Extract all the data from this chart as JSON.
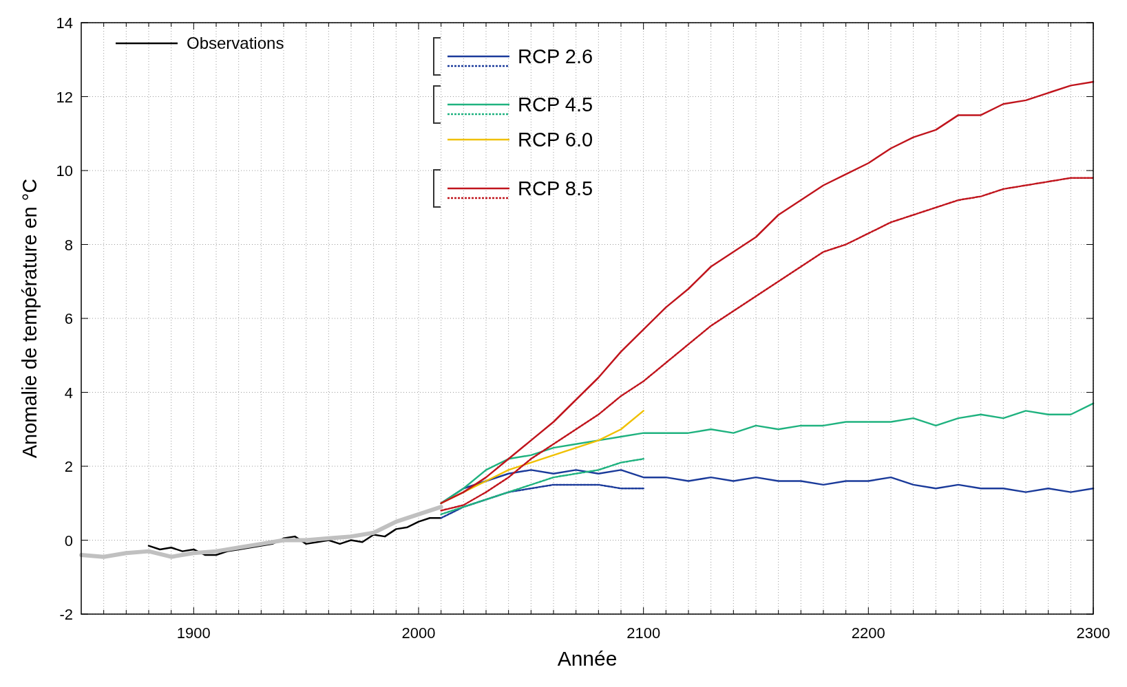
{
  "chart_data": {
    "type": "line",
    "xlabel": "Année",
    "ylabel": "Anomalie de température en °C",
    "xlim": [
      1850,
      2300
    ],
    "ylim": [
      -2,
      14
    ],
    "yticks": [
      -2,
      0,
      2,
      4,
      6,
      8,
      10,
      12,
      14
    ],
    "xticks": [
      {
        "value": 1860,
        "label": null
      },
      {
        "value": 1870,
        "label": null
      },
      {
        "value": 1880,
        "label": null
      },
      {
        "value": 1890,
        "label": null
      },
      1900,
      {
        "value": 1910,
        "label": null
      },
      {
        "value": 1920,
        "label": null
      },
      {
        "value": 1930,
        "label": null
      },
      {
        "value": 1940,
        "label": null
      },
      {
        "value": 1950,
        "label": null
      },
      {
        "value": 1960,
        "label": null
      },
      {
        "value": 1970,
        "label": null
      },
      {
        "value": 1980,
        "label": null
      },
      {
        "value": 1990,
        "label": null
      },
      2000,
      {
        "value": 2010,
        "label": null
      },
      {
        "value": 2020,
        "label": null
      },
      {
        "value": 2030,
        "label": null
      },
      {
        "value": 2040,
        "label": null
      },
      {
        "value": 2050,
        "label": null
      },
      {
        "value": 2060,
        "label": null
      },
      {
        "value": 2070,
        "label": null
      },
      {
        "value": 2080,
        "label": null
      },
      {
        "value": 2090,
        "label": null
      },
      2100,
      {
        "value": 2110,
        "label": null
      },
      {
        "value": 2120,
        "label": null
      },
      {
        "value": 2130,
        "label": null
      },
      {
        "value": 2140,
        "label": null
      },
      {
        "value": 2150,
        "label": null
      },
      {
        "value": 2160,
        "label": null
      },
      {
        "value": 2170,
        "label": null
      },
      {
        "value": 2180,
        "label": null
      },
      {
        "value": 2190,
        "label": null
      },
      2200,
      {
        "value": 2210,
        "label": null
      },
      {
        "value": 2220,
        "label": null
      },
      {
        "value": 2230,
        "label": null
      },
      {
        "value": 2240,
        "label": null
      },
      {
        "value": 2250,
        "label": null
      },
      {
        "value": 2260,
        "label": null
      },
      {
        "value": 2270,
        "label": null
      },
      {
        "value": 2280,
        "label": null
      },
      {
        "value": 2290,
        "label": null
      },
      2300
    ],
    "grid": true,
    "legend": "top left",
    "marker": "none",
    "series": [
      {
        "name": "Observations",
        "color": "#000000",
        "line_style": "solid",
        "x": [
          1880,
          1885,
          1890,
          1895,
          1900,
          1905,
          1910,
          1915,
          1920,
          1925,
          1930,
          1935,
          1940,
          1945,
          1950,
          1955,
          1960,
          1965,
          1970,
          1975,
          1980,
          1985,
          1990,
          1995,
          2000,
          2005,
          2010
        ],
        "values": [
          -0.15,
          -0.25,
          -0.2,
          -0.3,
          -0.25,
          -0.4,
          -0.4,
          -0.3,
          -0.25,
          -0.2,
          -0.15,
          -0.1,
          0.05,
          0.1,
          -0.1,
          -0.05,
          0,
          -0.1,
          0,
          -0.05,
          0.15,
          0.1,
          0.3,
          0.35,
          0.5,
          0.6,
          0.6
        ]
      },
      {
        "color": "#c0c0c0",
        "line_style": "solid",
        "x": [
          1850,
          1860,
          1870,
          1880,
          1890,
          1900,
          1910,
          1920,
          1930,
          1940,
          1950,
          1960,
          1970,
          1980,
          1990,
          2000,
          2010
        ],
        "values": [
          -0.4,
          -0.45,
          -0.35,
          -0.3,
          -0.45,
          -0.35,
          -0.3,
          -0.2,
          -0.1,
          0,
          0,
          0.05,
          0.1,
          0.2,
          0.5,
          0.7,
          0.9
        ]
      },
      {
        "name": "RCP 2.6",
        "color": "#1a3a9a",
        "line_style": "solid",
        "x": [
          2010,
          2020,
          2030,
          2040,
          2050,
          2060,
          2070,
          2080,
          2090,
          2100,
          2110,
          2120,
          2130,
          2140,
          2150,
          2160,
          2170,
          2180,
          2190,
          2200,
          2210,
          2220,
          2230,
          2240,
          2250,
          2260,
          2270,
          2280,
          2290,
          2300
        ],
        "values": [
          1,
          1.4,
          1.6,
          1.8,
          1.9,
          1.8,
          1.9,
          1.8,
          1.9,
          1.7,
          1.7,
          1.6,
          1.7,
          1.6,
          1.7,
          1.6,
          1.6,
          1.5,
          1.6,
          1.6,
          1.7,
          1.5,
          1.4,
          1.5,
          1.4,
          1.4,
          1.3,
          1.4,
          1.3,
          1.4
        ]
      },
      {
        "color": "#1a3a9a",
        "line_style": "dotted",
        "x": [
          2010,
          2020,
          2030,
          2040,
          2050,
          2060,
          2070,
          2080,
          2090,
          2100
        ],
        "values": [
          0.6,
          0.9,
          1.1,
          1.3,
          1.4,
          1.5,
          1.5,
          1.5,
          1.4,
          1.4
        ]
      },
      {
        "name": "RCP 4.5",
        "color": "#1fb27f",
        "line_style": "solid",
        "x": [
          2010,
          2020,
          2030,
          2040,
          2050,
          2060,
          2070,
          2080,
          2090,
          2100,
          2110,
          2120,
          2130,
          2140,
          2150,
          2160,
          2170,
          2180,
          2190,
          2200,
          2210,
          2220,
          2230,
          2240,
          2250,
          2260,
          2270,
          2280,
          2290,
          2300
        ],
        "values": [
          1,
          1.4,
          1.9,
          2.2,
          2.3,
          2.5,
          2.6,
          2.7,
          2.8,
          2.9,
          2.9,
          2.9,
          3,
          2.9,
          3.1,
          3,
          3.1,
          3.1,
          3.2,
          3.2,
          3.2,
          3.3,
          3.1,
          3.3,
          3.4,
          3.3,
          3.5,
          3.4,
          3.4,
          3.7
        ]
      },
      {
        "color": "#1fb27f",
        "line_style": "dotted",
        "x": [
          2010,
          2020,
          2030,
          2040,
          2050,
          2060,
          2070,
          2080,
          2090,
          2100
        ],
        "values": [
          0.7,
          0.9,
          1.1,
          1.3,
          1.5,
          1.7,
          1.8,
          1.9,
          2.1,
          2.2
        ]
      },
      {
        "name": "RCP 6.0",
        "color": "#f0c000",
        "line_style": "solid",
        "x": [
          2010,
          2020,
          2030,
          2040,
          2050,
          2060,
          2070,
          2080,
          2090,
          2100
        ],
        "values": [
          1,
          1.3,
          1.6,
          1.9,
          2.1,
          2.3,
          2.5,
          2.7,
          3,
          3.5
        ]
      },
      {
        "name": "RCP 8.5",
        "color": "#c0141c",
        "line_style": "solid",
        "x": [
          2010,
          2020,
          2030,
          2040,
          2050,
          2060,
          2070,
          2080,
          2090,
          2100,
          2110,
          2120,
          2130,
          2140,
          2150,
          2160,
          2170,
          2180,
          2190,
          2200,
          2210,
          2220,
          2230,
          2240,
          2250,
          2260,
          2270,
          2280,
          2290,
          2300
        ],
        "values": [
          1,
          1.3,
          1.7,
          2.2,
          2.7,
          3.2,
          3.8,
          4.4,
          5.1,
          5.7,
          6.3,
          6.8,
          7.4,
          7.8,
          8.2,
          8.8,
          9.2,
          9.6,
          9.9,
          10.2,
          10.6,
          10.9,
          11.1,
          11.5,
          11.5,
          11.8,
          11.9,
          12.1,
          12.3,
          12.4
        ]
      },
      {
        "color": "#c0141c",
        "line_style": "dotted",
        "x": [
          2010,
          2020,
          2030,
          2040,
          2050,
          2060,
          2070,
          2080,
          2090,
          2100,
          2110,
          2120,
          2130,
          2140,
          2150,
          2160,
          2170,
          2180,
          2190,
          2200,
          2210,
          2220,
          2230,
          2240,
          2250,
          2260,
          2270,
          2280,
          2290,
          2300
        ],
        "values": [
          0.8,
          0.95,
          1.3,
          1.7,
          2.2,
          2.6,
          3,
          3.4,
          3.9,
          4.3,
          4.8,
          5.3,
          5.8,
          6.2,
          6.6,
          7,
          7.4,
          7.8,
          8,
          8.3,
          8.6,
          8.8,
          9,
          9.2,
          9.3,
          9.5,
          9.6,
          9.7,
          9.8,
          9.8
        ]
      }
    ]
  }
}
